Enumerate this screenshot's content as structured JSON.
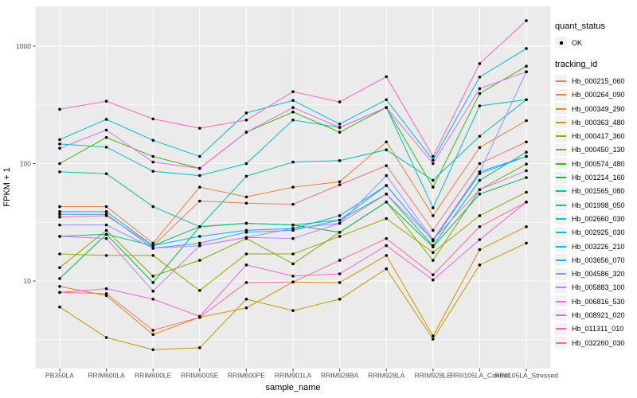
{
  "figure": {
    "legend": {
      "quant_title": "quant_status",
      "quant_ok_label": "OK",
      "tracking_title": "tracking_id"
    }
  },
  "chart_data": {
    "type": "line",
    "title": "",
    "xlabel": "sample_name",
    "ylabel": "FPKM + 1",
    "y_scale": "log10",
    "y_ticks": [
      10,
      100,
      1000
    ],
    "ylim": [
      1.8,
      2200
    ],
    "grid": true,
    "panel_bg": "#EBEBEB",
    "grid_color": "#FFFFFF",
    "point_color": "#000000",
    "legend_position": "right",
    "quant_status": "OK",
    "categories": [
      "PB350LA",
      "RRIM600LA",
      "RRIM600LE",
      "RRIM600SE",
      "RRIM600PE",
      "RRIM901LA",
      "RRIM928BA",
      "RRIM928LA",
      "RRIM928LE",
      "RRII105LA_Control",
      "RRII105LA_Stressed"
    ],
    "series": [
      {
        "name": "Hb_000215_060",
        "color": "#F8766D",
        "values": [
          35,
          36,
          20,
          48,
          46,
          45,
          66,
          96,
          27,
          100,
          153
        ]
      },
      {
        "name": "Hb_000264_090",
        "color": "#EA8331",
        "values": [
          43,
          43,
          21,
          63,
          52,
          63,
          70,
          153,
          36,
          137,
          232
        ]
      },
      {
        "name": "Hb_000349_290",
        "color": "#D89000",
        "values": [
          9,
          7.5,
          3.5,
          4.9,
          5.9,
          9.8,
          9.7,
          16.5,
          3.4,
          18.5,
          29
        ]
      },
      {
        "name": "Hb_000363_480",
        "color": "#C09B00",
        "values": [
          6,
          3.3,
          2.6,
          2.7,
          7,
          5.6,
          7,
          12.7,
          3.2,
          13.7,
          21
        ]
      },
      {
        "name": "Hb_000417_360",
        "color": "#A3A500",
        "values": [
          17,
          16.5,
          16.5,
          8.3,
          17,
          17,
          24,
          34,
          17.5,
          36,
          57
        ]
      },
      {
        "name": "Hb_000450_130",
        "color": "#7CAE00",
        "values": [
          13,
          27,
          11,
          15,
          23,
          14,
          26,
          47,
          15,
          60,
          99
        ]
      },
      {
        "name": "Hb_000574_480",
        "color": "#39B600",
        "values": [
          100,
          167,
          115,
          91,
          185,
          275,
          185,
          300,
          63,
          395,
          675
        ]
      },
      {
        "name": "Hb_001214_160",
        "color": "#00BB4E",
        "values": [
          10.5,
          25,
          9.7,
          29,
          31,
          30,
          26,
          47,
          19.5,
          55,
          76
        ]
      },
      {
        "name": "Hb_001565_080",
        "color": "#00BF7D",
        "values": [
          24,
          25,
          20,
          29,
          31,
          30,
          33,
          55,
          20,
          72,
          125
        ]
      },
      {
        "name": "Hb_001998_050",
        "color": "#00C1A3",
        "values": [
          85,
          82,
          43,
          29,
          78,
          103,
          106,
          131,
          72,
          171,
          350
        ]
      },
      {
        "name": "Hb_002660_030",
        "color": "#00BFC4",
        "values": [
          147,
          138,
          86,
          79,
          100,
          235,
          203,
          300,
          42,
          310,
          350
        ]
      },
      {
        "name": "Hb_002925_030",
        "color": "#00BAE0",
        "values": [
          160,
          238,
          158,
          115,
          270,
          345,
          217,
          350,
          107,
          545,
          955
        ]
      },
      {
        "name": "Hb_003226_210",
        "color": "#00B0F6",
        "values": [
          39,
          39,
          20,
          24,
          27,
          28,
          36,
          65,
          22,
          85,
          115
        ]
      },
      {
        "name": "Hb_003656_070",
        "color": "#35A2FF",
        "values": [
          37,
          37,
          19,
          21,
          26,
          27,
          33,
          65,
          22,
          82,
          115
        ]
      },
      {
        "name": "Hb_004586_320",
        "color": "#9590FF",
        "values": [
          30,
          30,
          19,
          20,
          23.5,
          28,
          31,
          79,
          22.5,
          85,
          605
        ]
      },
      {
        "name": "Hb_005883_100",
        "color": "#C77CFF",
        "values": [
          24,
          23,
          8.2,
          20,
          23.5,
          23,
          31,
          55,
          22.5,
          60,
          87
        ]
      },
      {
        "name": "Hb_006816_530",
        "color": "#E76BF3",
        "values": [
          135,
          193,
          103,
          91,
          185,
          300,
          203,
          300,
          100,
          435,
          605
        ]
      },
      {
        "name": "Hb_008921_020",
        "color": "#FA62DB",
        "values": [
          8,
          8.6,
          7,
          5,
          13.7,
          11,
          11.5,
          20,
          10.2,
          22.5,
          47
        ]
      },
      {
        "name": "Hb_011311_010",
        "color": "#FF62BC",
        "values": [
          290,
          340,
          240,
          200,
          235,
          410,
          335,
          550,
          115,
          710,
          1650
        ]
      },
      {
        "name": "Hb_032260_030",
        "color": "#FF6A98",
        "values": [
          8,
          7.8,
          3.8,
          4.9,
          9.7,
          9.8,
          15,
          23,
          11.3,
          29,
          47
        ]
      }
    ]
  }
}
